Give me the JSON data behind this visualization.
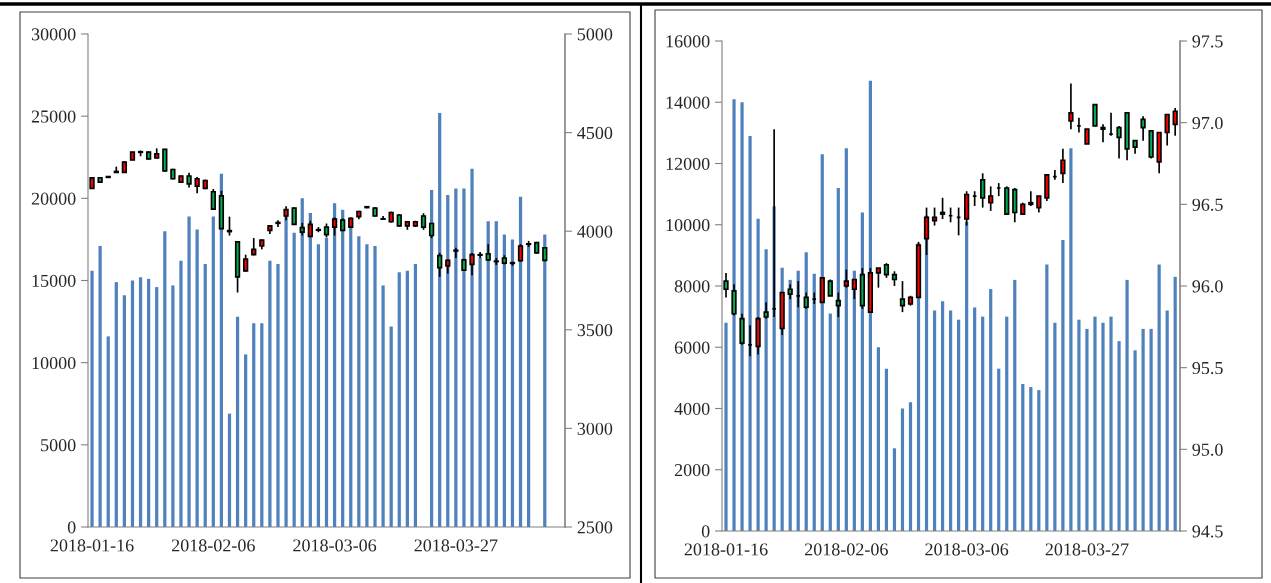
{
  "chart_data": [
    {
      "type": "bar",
      "categories": [
        "2018-01-16",
        null,
        null,
        null,
        null,
        null,
        null,
        null,
        null,
        null,
        null,
        null,
        null,
        null,
        null,
        "2018-02-06",
        null,
        null,
        null,
        null,
        null,
        null,
        null,
        null,
        null,
        null,
        null,
        null,
        null,
        null,
        "2018-03-06",
        null,
        null,
        null,
        null,
        null,
        null,
        null,
        null,
        null,
        null,
        null,
        null,
        null,
        null,
        "2018-03-27",
        null,
        null,
        null,
        null,
        null,
        null,
        null,
        null,
        null,
        null,
        null
      ],
      "ylim": [
        0,
        30000
      ],
      "yticks": [
        0,
        5000,
        10000,
        15000,
        20000,
        25000,
        30000
      ],
      "y2lim": [
        2500,
        5000
      ],
      "y2ticks": [
        2500,
        3000,
        3500,
        4000,
        4500,
        5000
      ],
      "grid": false,
      "legend": false,
      "series": [
        {
          "type": "bar",
          "color": "#4f81bd",
          "values": [
            15600,
            17100,
            11600,
            14900,
            14100,
            15000,
            15200,
            15100,
            14600,
            18000,
            14700,
            16200,
            18900,
            18100,
            16000,
            18900,
            21500,
            6900,
            12800,
            10500,
            12400,
            12400,
            16200,
            16000,
            19100,
            17900,
            20000,
            19100,
            17200,
            17600,
            19700,
            19300,
            18300,
            17700,
            17200,
            17100,
            14700,
            12200,
            15500,
            15600,
            16000,
            null,
            20500,
            25200,
            20200,
            20600,
            20600,
            21800,
            16400,
            18600,
            18600,
            17800,
            17500,
            20100,
            17200,
            null,
            17800
          ]
        },
        {
          "type": "candlestick",
          "axis": "y2",
          "ohlc": [
            [
              4217,
              4272,
              4215,
              4270
            ],
            [
              4271,
              4275,
              4245,
              4249
            ],
            [
              4273,
              4280,
              4270,
              4277
            ],
            [
              4298,
              4327,
              4296,
              4303
            ],
            [
              4298,
              4355,
              4296,
              4350
            ],
            [
              4362,
              4403,
              4360,
              4401
            ],
            [
              4400,
              4409,
              4380,
              4403
            ],
            [
              4401,
              4405,
              4363,
              4367
            ],
            [
              4371,
              4420,
              4369,
              4392
            ],
            [
              4415,
              4418,
              4302,
              4306
            ],
            [
              4313,
              4317,
              4262,
              4266
            ],
            [
              4249,
              4283,
              4247,
              4280
            ],
            [
              4280,
              4296,
              4222,
              4240
            ],
            [
              4228,
              4275,
              4193,
              4266
            ],
            [
              4217,
              4262,
              4213,
              4257
            ],
            [
              4200,
              4214,
              4108,
              4112
            ],
            [
              4179,
              4205,
              4010,
              4013
            ],
            [
              4003,
              4074,
              3978,
              3998
            ],
            [
              3946,
              3949,
              3689,
              3768
            ],
            [
              3799,
              3881,
              3795,
              3859
            ],
            [
              3881,
              3965,
              3878,
              3908
            ],
            [
              3925,
              3958,
              3908,
              3955
            ],
            [
              4004,
              4030,
              3986,
              4027
            ],
            [
              4040,
              4056,
              4021,
              4044
            ],
            [
              4077,
              4126,
              4056,
              4109
            ],
            [
              4117,
              4120,
              4032,
              4035
            ],
            [
              4018,
              4042,
              3978,
              3995
            ],
            [
              3974,
              4053,
              3970,
              4035
            ],
            [
              4005,
              4021,
              3995,
              4008
            ],
            [
              4021,
              4039,
              3969,
              3983
            ],
            [
              4021,
              4070,
              3978,
              4061
            ],
            [
              4056,
              4065,
              4000,
              4004
            ],
            [
              4021,
              4070,
              4018,
              4065
            ],
            [
              4074,
              4104,
              4060,
              4100
            ],
            [
              4120,
              4128,
              4116,
              4124
            ],
            [
              4117,
              4121,
              4074,
              4077
            ],
            [
              4063,
              4077,
              4059,
              4061
            ],
            [
              4048,
              4099,
              4044,
              4095
            ],
            [
              4082,
              4086,
              4024,
              4027
            ],
            [
              4027,
              4051,
              4007,
              4048
            ],
            [
              4027,
              4053,
              4021,
              4048
            ],
            [
              4077,
              4091,
              4007,
              4021
            ],
            [
              4039,
              4042,
              3965,
              3978
            ],
            [
              3876,
              3890,
              3768,
              3815
            ],
            [
              3824,
              3856,
              3785,
              3852
            ],
            [
              3900,
              3916,
              3864,
              3903
            ],
            [
              3855,
              3860,
              3800,
              3803
            ],
            [
              3832,
              3890,
              3777,
              3881
            ],
            [
              3878,
              3895,
              3864,
              3881
            ],
            [
              3885,
              3934,
              3850,
              3855
            ],
            [
              3848,
              3864,
              3829,
              3846
            ],
            [
              3864,
              3878,
              3832,
              3838
            ],
            [
              3840,
              3846,
              3825,
              3837
            ],
            [
              3850,
              3934,
              3846,
              3925
            ],
            [
              3934,
              3951,
              3920,
              3936
            ],
            [
              3942,
              3946,
              3886,
              3890
            ],
            [
              3916,
              3920,
              3848,
              3852
            ]
          ],
          "colors": [
            "#ff0000",
            "#00b050",
            "#000000",
            "#000000",
            "#ff0000",
            "#ff0000",
            "#000000",
            "#00b050",
            "#ff0000",
            "#00b050",
            "#00b050",
            "#ff0000",
            "#00b050",
            "#ff0000",
            "#ff0000",
            "#00b050",
            "#00b050",
            "#000000",
            "#00b050",
            "#ff0000",
            "#ff0000",
            "#ff0000",
            "#ff0000",
            "#000000",
            "#ff0000",
            "#00b050",
            "#00b050",
            "#ff0000",
            "#000000",
            "#00b050",
            "#ff0000",
            "#00b050",
            "#ff0000",
            "#ff0000",
            "#000000",
            "#00b050",
            "#000000",
            "#ff0000",
            "#00b050",
            "#ff0000",
            "#ff0000",
            "#00b050",
            "#00b050",
            "#00b050",
            "#ff0000",
            "#000000",
            "#00b050",
            "#ff0000",
            "#000000",
            "#00b050",
            "#000000",
            "#00b050",
            "#000000",
            "#ff0000",
            "#000000",
            "#00b050",
            "#00b050"
          ]
        }
      ]
    },
    {
      "type": "bar",
      "categories": [
        "2018-01-16",
        null,
        null,
        null,
        null,
        null,
        null,
        null,
        null,
        null,
        null,
        null,
        null,
        null,
        null,
        "2018-02-06",
        null,
        null,
        null,
        null,
        null,
        null,
        null,
        null,
        null,
        null,
        null,
        null,
        null,
        null,
        "2018-03-06",
        null,
        null,
        null,
        null,
        null,
        null,
        null,
        null,
        null,
        null,
        null,
        null,
        null,
        null,
        "2018-03-27",
        null,
        null,
        null,
        null,
        null,
        null,
        null,
        null,
        null,
        null,
        null
      ],
      "ylim": [
        0,
        16000
      ],
      "yticks": [
        0,
        2000,
        4000,
        6000,
        8000,
        10000,
        12000,
        14000,
        16000
      ],
      "y2lim": [
        94.5,
        97.5
      ],
      "y2ticks": [
        {
          "value": 94.5,
          "label": "94.5"
        },
        {
          "value": 95,
          "label": "95.0"
        },
        {
          "value": 95.5,
          "label": "95.5"
        },
        {
          "value": 96,
          "label": "96.0"
        },
        {
          "value": 96.5,
          "label": "96.5"
        },
        {
          "value": 97,
          "label": "97.0"
        },
        {
          "value": 97.5,
          "label": "97.5"
        }
      ],
      "grid": false,
      "legend": false,
      "series": [
        {
          "type": "bar",
          "color": "#4f81bd",
          "values": [
            6800,
            14100,
            14000,
            12900,
            10200,
            9200,
            10600,
            8600,
            8200,
            8500,
            9100,
            8400,
            12300,
            7100,
            11200,
            12500,
            8500,
            10400,
            14700,
            6000,
            5300,
            2700,
            4000,
            4200,
            9400,
            10300,
            7200,
            7500,
            7200,
            6900,
            10100,
            7300,
            7000,
            7900,
            5300,
            7000,
            8200,
            4800,
            4700,
            4600,
            8700,
            6800,
            9500,
            12500,
            6900,
            6600,
            7000,
            6800,
            7000,
            6200,
            8200,
            5900,
            6600,
            6600,
            8700,
            7200,
            8300
          ]
        },
        {
          "type": "candlestick",
          "axis": "y2",
          "ohlc": [
            [
              96.03,
              96.08,
              95.93,
              95.98
            ],
            [
              95.97,
              96.01,
              95.82,
              95.83
            ],
            [
              95.8,
              95.83,
              95.64,
              95.65
            ],
            [
              95.64,
              95.76,
              95.57,
              95.64
            ],
            [
              95.63,
              95.81,
              95.58,
              95.8
            ],
            [
              95.84,
              95.9,
              95.8,
              95.81
            ],
            [
              95.86,
              96.96,
              95.81,
              95.86
            ],
            [
              95.74,
              95.96,
              95.7,
              95.96
            ],
            [
              95.98,
              96.01,
              95.92,
              95.95
            ],
            [
              95.94,
              96.03,
              95.87,
              95.94
            ],
            [
              95.93,
              95.96,
              95.86,
              95.87
            ],
            [
              95.92,
              95.96,
              95.89,
              95.92
            ],
            [
              95.9,
              96.05,
              95.9,
              96.05
            ],
            [
              96.03,
              96.04,
              95.94,
              95.94
            ],
            [
              95.91,
              95.96,
              95.81,
              95.88
            ],
            [
              96.0,
              96.1,
              95.99,
              96.03
            ],
            [
              95.98,
              96.04,
              95.92,
              96.04
            ],
            [
              96.07,
              96.11,
              95.86,
              95.88
            ],
            [
              95.84,
              96.11,
              95.84,
              96.08
            ],
            [
              96.08,
              96.11,
              95.99,
              96.11
            ],
            [
              96.13,
              96.14,
              96.05,
              96.07
            ],
            [
              96.07,
              96.09,
              96.0,
              96.04
            ],
            [
              95.92,
              96.03,
              95.84,
              95.88
            ],
            [
              95.89,
              95.94,
              95.88,
              95.93
            ],
            [
              95.93,
              96.27,
              95.93,
              96.25
            ],
            [
              96.29,
              96.48,
              96.19,
              96.42
            ],
            [
              96.4,
              96.48,
              96.37,
              96.42
            ],
            [
              96.45,
              96.54,
              96.41,
              96.44
            ],
            [
              96.43,
              96.48,
              96.39,
              96.43
            ],
            [
              96.42,
              96.48,
              96.31,
              96.42
            ],
            [
              96.41,
              96.58,
              96.37,
              96.56
            ],
            [
              96.55,
              96.58,
              96.49,
              96.55
            ],
            [
              96.65,
              96.69,
              96.48,
              96.54
            ],
            [
              96.51,
              96.61,
              96.46,
              96.55
            ],
            [
              96.6,
              96.63,
              96.55,
              96.6
            ],
            [
              96.6,
              96.61,
              96.44,
              96.44
            ],
            [
              96.59,
              96.6,
              96.39,
              96.45
            ],
            [
              96.44,
              96.51,
              96.44,
              96.5
            ],
            [
              96.51,
              96.58,
              96.49,
              96.5
            ],
            [
              96.48,
              96.55,
              96.45,
              96.55
            ],
            [
              96.54,
              96.68,
              96.52,
              96.68
            ],
            [
              96.67,
              96.71,
              96.65,
              96.67
            ],
            [
              96.69,
              96.84,
              96.63,
              96.77
            ],
            [
              97.01,
              97.24,
              96.96,
              97.06
            ],
            [
              96.98,
              97.03,
              96.94,
              96.98
            ],
            [
              96.87,
              96.96,
              96.87,
              96.96
            ],
            [
              97.11,
              97.11,
              96.98,
              96.98
            ],
            [
              96.97,
              96.99,
              96.88,
              96.96
            ],
            [
              96.93,
              97.06,
              96.92,
              96.93
            ],
            [
              96.97,
              96.98,
              96.78,
              96.91
            ],
            [
              97.06,
              97.06,
              96.77,
              96.84
            ],
            [
              96.89,
              96.89,
              96.81,
              96.85
            ],
            [
              97.02,
              97.04,
              96.89,
              96.97
            ],
            [
              96.95,
              96.95,
              96.78,
              96.79
            ],
            [
              96.76,
              96.94,
              96.69,
              96.94
            ],
            [
              96.94,
              97.05,
              96.86,
              97.05
            ],
            [
              96.99,
              97.09,
              96.92,
              97.07
            ]
          ],
          "colors": [
            "#00b050",
            "#00b050",
            "#00b050",
            "#000000",
            "#ff0000",
            "#00b050",
            "#000000",
            "#ff0000",
            "#00b050",
            "#000000",
            "#00b050",
            "#000000",
            "#ff0000",
            "#00b050",
            "#00b050",
            "#ff0000",
            "#ff0000",
            "#00b050",
            "#ff0000",
            "#ff0000",
            "#00b050",
            "#00b050",
            "#00b050",
            "#ff0000",
            "#ff0000",
            "#ff0000",
            "#ff0000",
            "#000000",
            "#000000",
            "#000000",
            "#ff0000",
            "#000000",
            "#00b050",
            "#ff0000",
            "#000000",
            "#00b050",
            "#00b050",
            "#ff0000",
            "#000000",
            "#ff0000",
            "#ff0000",
            "#000000",
            "#ff0000",
            "#ff0000",
            "#000000",
            "#ff0000",
            "#00b050",
            "#000000",
            "#000000",
            "#00b050",
            "#00b050",
            "#00b050",
            "#00b050",
            "#00b050",
            "#ff0000",
            "#ff0000",
            "#ff0000"
          ]
        }
      ]
    }
  ]
}
